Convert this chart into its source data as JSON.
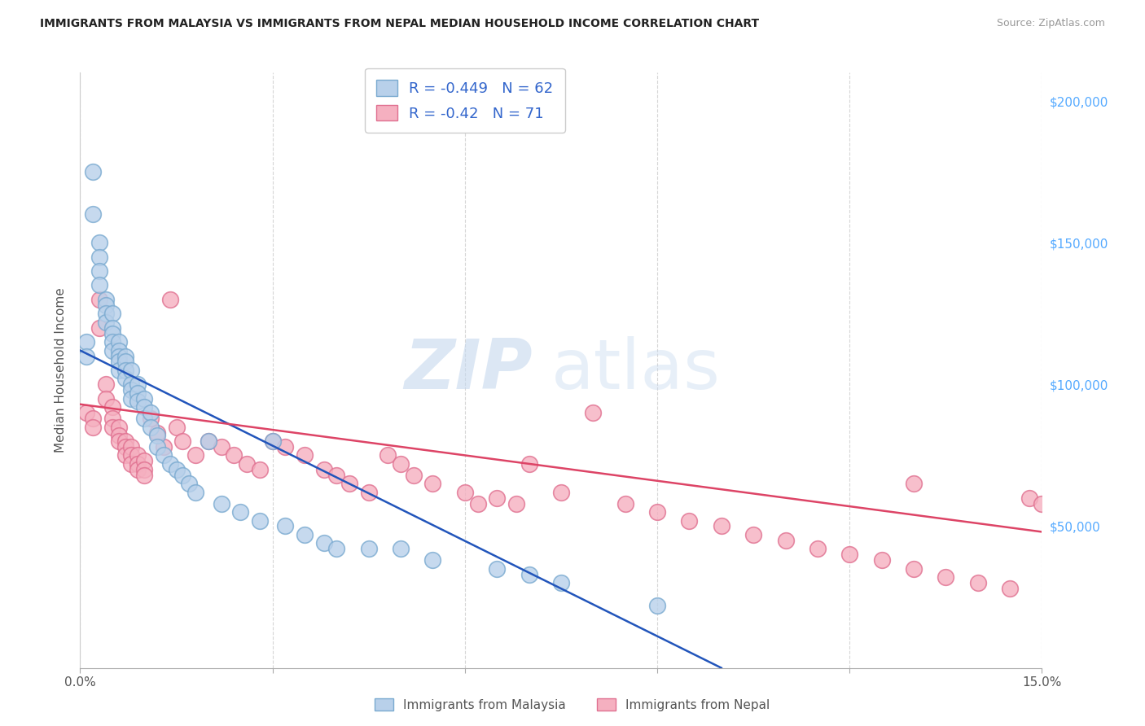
{
  "title": "IMMIGRANTS FROM MALAYSIA VS IMMIGRANTS FROM NEPAL MEDIAN HOUSEHOLD INCOME CORRELATION CHART",
  "source": "Source: ZipAtlas.com",
  "ylabel": "Median Household Income",
  "x_min": 0.0,
  "x_max": 0.15,
  "y_min": 0,
  "y_max": 210000,
  "x_ticks": [
    0.0,
    0.03,
    0.06,
    0.09,
    0.12,
    0.15
  ],
  "x_tick_labels": [
    "0.0%",
    "",
    "",
    "",
    "",
    "15.0%"
  ],
  "y_ticks_right": [
    50000,
    100000,
    150000,
    200000
  ],
  "y_tick_labels_right": [
    "$50,000",
    "$100,000",
    "$150,000",
    "$200,000"
  ],
  "malaysia_color": "#b8d0ea",
  "nepal_color": "#f5b0c0",
  "malaysia_edge_color": "#7aaad0",
  "nepal_edge_color": "#e07090",
  "trend_malaysia_color": "#2255bb",
  "trend_nepal_color": "#dd4466",
  "trend_malaysia_x0": 0.0,
  "trend_malaysia_y0": 112000,
  "trend_malaysia_x1": 0.1,
  "trend_malaysia_y1": 0,
  "trend_nepal_x0": 0.0,
  "trend_nepal_y0": 93000,
  "trend_nepal_x1": 0.15,
  "trend_nepal_y1": 48000,
  "R_malaysia": -0.449,
  "N_malaysia": 62,
  "R_nepal": -0.42,
  "N_nepal": 71,
  "watermark_zip": "ZIP",
  "watermark_atlas": "atlas",
  "legend_label_malaysia": "Immigrants from Malaysia",
  "legend_label_nepal": "Immigrants from Nepal",
  "malaysia_x": [
    0.001,
    0.001,
    0.002,
    0.002,
    0.003,
    0.003,
    0.003,
    0.003,
    0.004,
    0.004,
    0.004,
    0.004,
    0.005,
    0.005,
    0.005,
    0.005,
    0.005,
    0.006,
    0.006,
    0.006,
    0.006,
    0.006,
    0.007,
    0.007,
    0.007,
    0.007,
    0.008,
    0.008,
    0.008,
    0.008,
    0.009,
    0.009,
    0.009,
    0.01,
    0.01,
    0.01,
    0.011,
    0.011,
    0.012,
    0.012,
    0.013,
    0.014,
    0.015,
    0.016,
    0.017,
    0.018,
    0.02,
    0.022,
    0.025,
    0.028,
    0.03,
    0.032,
    0.035,
    0.038,
    0.04,
    0.045,
    0.05,
    0.055,
    0.065,
    0.07,
    0.075,
    0.09
  ],
  "malaysia_y": [
    115000,
    110000,
    175000,
    160000,
    150000,
    145000,
    140000,
    135000,
    130000,
    128000,
    125000,
    122000,
    125000,
    120000,
    118000,
    115000,
    112000,
    115000,
    112000,
    110000,
    108000,
    105000,
    110000,
    108000,
    105000,
    102000,
    105000,
    100000,
    98000,
    95000,
    100000,
    97000,
    94000,
    95000,
    92000,
    88000,
    90000,
    85000,
    82000,
    78000,
    75000,
    72000,
    70000,
    68000,
    65000,
    62000,
    80000,
    58000,
    55000,
    52000,
    80000,
    50000,
    47000,
    44000,
    42000,
    42000,
    42000,
    38000,
    35000,
    33000,
    30000,
    22000
  ],
  "nepal_x": [
    0.001,
    0.002,
    0.002,
    0.003,
    0.003,
    0.004,
    0.004,
    0.005,
    0.005,
    0.005,
    0.006,
    0.006,
    0.006,
    0.007,
    0.007,
    0.007,
    0.008,
    0.008,
    0.008,
    0.009,
    0.009,
    0.009,
    0.01,
    0.01,
    0.01,
    0.011,
    0.012,
    0.013,
    0.014,
    0.015,
    0.016,
    0.018,
    0.02,
    0.022,
    0.024,
    0.026,
    0.028,
    0.03,
    0.032,
    0.035,
    0.038,
    0.04,
    0.042,
    0.045,
    0.048,
    0.05,
    0.052,
    0.055,
    0.06,
    0.062,
    0.065,
    0.068,
    0.07,
    0.075,
    0.08,
    0.085,
    0.09,
    0.095,
    0.1,
    0.105,
    0.11,
    0.115,
    0.12,
    0.125,
    0.13,
    0.135,
    0.14,
    0.145,
    0.148,
    0.15,
    0.13
  ],
  "nepal_y": [
    90000,
    88000,
    85000,
    130000,
    120000,
    100000,
    95000,
    92000,
    88000,
    85000,
    85000,
    82000,
    80000,
    80000,
    78000,
    75000,
    78000,
    75000,
    72000,
    75000,
    72000,
    70000,
    73000,
    70000,
    68000,
    88000,
    83000,
    78000,
    130000,
    85000,
    80000,
    75000,
    80000,
    78000,
    75000,
    72000,
    70000,
    80000,
    78000,
    75000,
    70000,
    68000,
    65000,
    62000,
    75000,
    72000,
    68000,
    65000,
    62000,
    58000,
    60000,
    58000,
    72000,
    62000,
    90000,
    58000,
    55000,
    52000,
    50000,
    47000,
    45000,
    42000,
    40000,
    38000,
    35000,
    32000,
    30000,
    28000,
    60000,
    58000,
    65000
  ]
}
